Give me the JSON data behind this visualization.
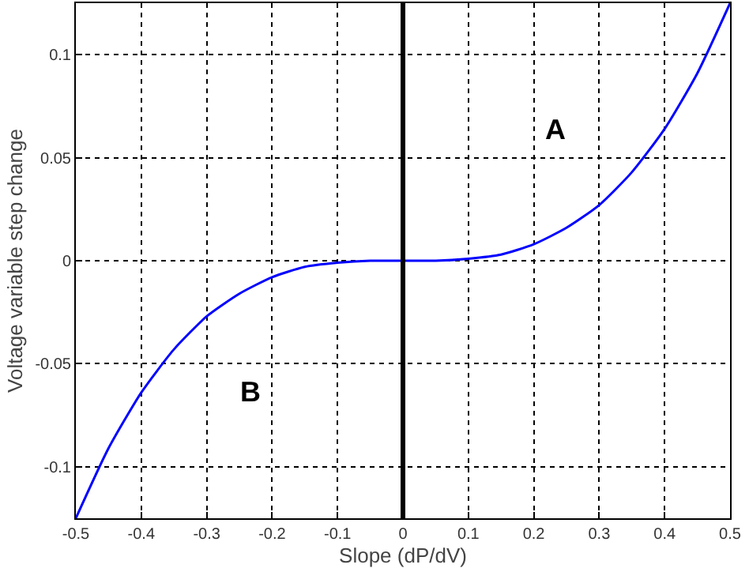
{
  "chart_data": {
    "type": "line",
    "xlabel": "Slope (dP/dV)",
    "ylabel": "Voltage variable step change",
    "x": [
      -0.5,
      -0.45,
      -0.4,
      -0.35,
      -0.3,
      -0.25,
      -0.2,
      -0.15,
      -0.1,
      -0.05,
      0,
      0.05,
      0.1,
      0.15,
      0.2,
      0.25,
      0.3,
      0.35,
      0.4,
      0.45,
      0.5
    ],
    "series": [
      {
        "color": "#0000ff",
        "values": [
          -0.125,
          -0.091,
          -0.064,
          -0.043,
          -0.027,
          -0.016,
          -0.008,
          -0.003,
          -0.001,
          0,
          0,
          0,
          0.001,
          0.003,
          0.008,
          0.016,
          0.027,
          0.043,
          0.064,
          0.091,
          0.125
        ]
      }
    ],
    "xlim": [
      -0.5,
      0.5
    ],
    "xticks": [
      -0.5,
      -0.4,
      -0.3,
      -0.2,
      -0.1,
      0,
      0.1,
      0.2,
      0.3,
      0.4,
      0.5
    ],
    "ylim": [
      -0.125,
      0.125
    ],
    "yticks": [
      -0.1,
      -0.05,
      0,
      0.05,
      0.1
    ],
    "ref_lines": [
      {
        "axis": "x",
        "value": 0,
        "color": "#000000"
      }
    ],
    "annotations": [
      "A",
      "B"
    ],
    "grid": true,
    "line_style": "solid",
    "marker": "none"
  }
}
